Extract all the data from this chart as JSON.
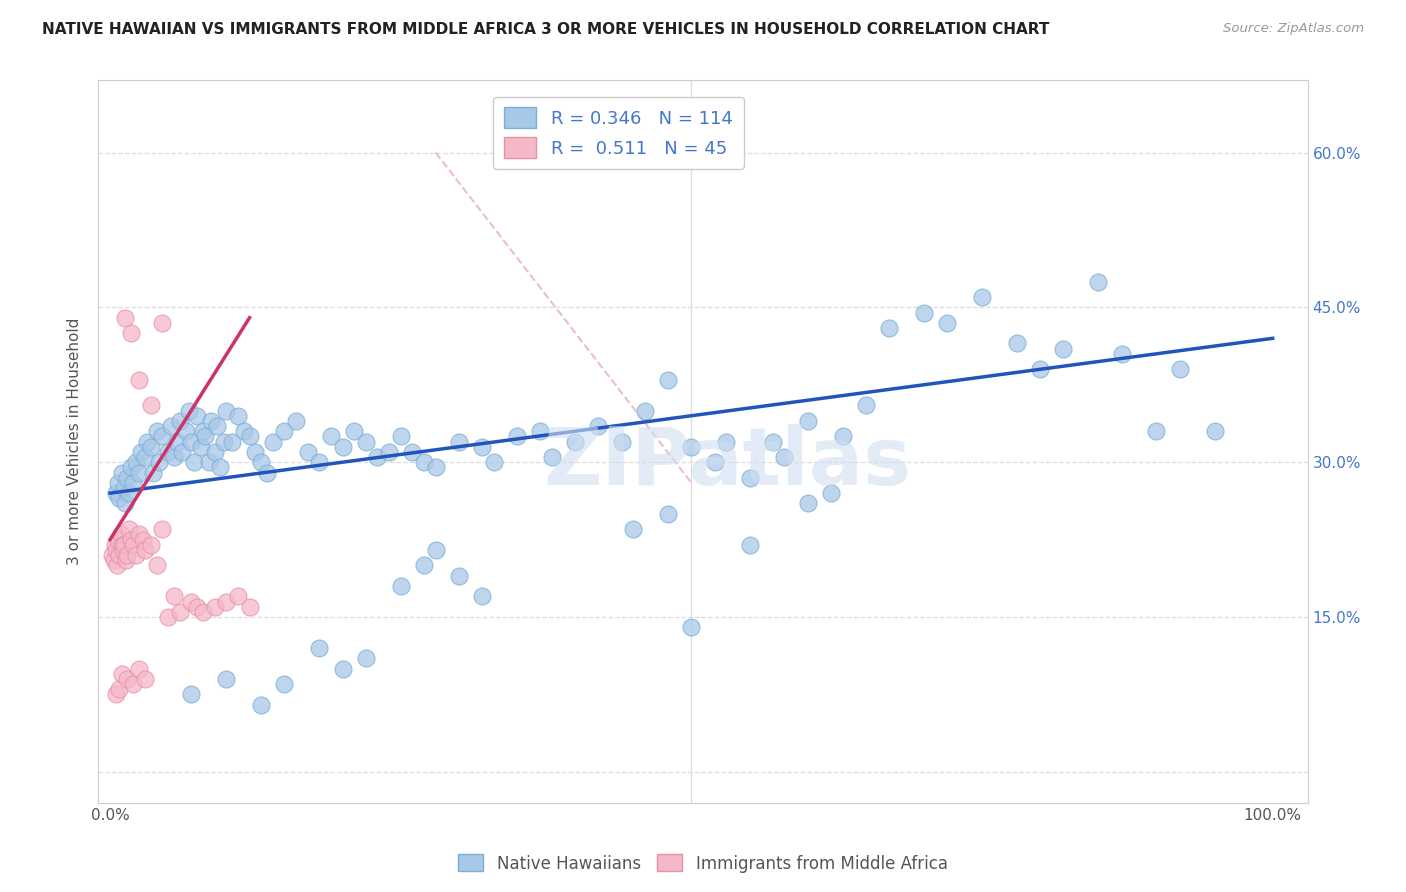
{
  "title": "NATIVE HAWAIIAN VS IMMIGRANTS FROM MIDDLE AFRICA 3 OR MORE VEHICLES IN HOUSEHOLD CORRELATION CHART",
  "source": "Source: ZipAtlas.com",
  "ylabel": "3 or more Vehicles in Household",
  "r_blue": 0.346,
  "n_blue": 114,
  "r_pink": 0.511,
  "n_pink": 45,
  "xlim": [
    -1.0,
    103.0
  ],
  "ylim": [
    -3.0,
    67.0
  ],
  "blue_color": "#a8c8e8",
  "blue_edge": "#7aaed4",
  "pink_color": "#f5b8c8",
  "pink_edge": "#e890a8",
  "blue_line_color": "#2255bb",
  "pink_line_color": "#cc3366",
  "diag_line_color": "#e8b8c8",
  "grid_color": "#dddddd",
  "border_color": "#cccccc",
  "title_color": "#222222",
  "source_color": "#999999",
  "watermark": "ZIPatlas",
  "watermark_color": "#d0dff0",
  "right_tick_color": "#4477cc",
  "legend_box_color": "#cccccc",
  "blue_scatter_x": [
    0.5,
    0.7,
    0.8,
    1.0,
    1.2,
    1.3,
    1.5,
    1.6,
    1.8,
    2.0,
    2.2,
    2.5,
    2.7,
    3.0,
    3.2,
    3.5,
    3.7,
    4.0,
    4.2,
    4.5,
    5.0,
    5.2,
    5.5,
    5.8,
    6.0,
    6.2,
    6.5,
    6.8,
    7.0,
    7.2,
    7.5,
    7.8,
    8.0,
    8.2,
    8.5,
    8.7,
    9.0,
    9.2,
    9.5,
    9.8,
    10.0,
    10.5,
    11.0,
    11.5,
    12.0,
    12.5,
    13.0,
    13.5,
    14.0,
    15.0,
    16.0,
    17.0,
    18.0,
    19.0,
    20.0,
    21.0,
    22.0,
    23.0,
    24.0,
    25.0,
    26.0,
    27.0,
    28.0,
    30.0,
    32.0,
    33.0,
    35.0,
    37.0,
    38.0,
    40.0,
    42.0,
    44.0,
    46.0,
    48.0,
    50.0,
    52.0,
    53.0,
    55.0,
    57.0,
    58.0,
    60.0,
    62.0,
    63.0,
    65.0,
    67.0,
    70.0,
    72.0,
    75.0,
    78.0,
    80.0,
    82.0,
    85.0,
    87.0,
    90.0,
    92.0,
    95.0,
    25.0,
    27.0,
    28.0,
    30.0,
    32.0,
    15.0,
    18.0,
    20.0,
    22.0,
    7.0,
    10.0,
    13.0,
    45.0,
    48.0,
    50.0,
    55.0,
    60.0
  ],
  "blue_scatter_y": [
    27.0,
    28.0,
    26.5,
    29.0,
    27.5,
    26.0,
    28.5,
    27.0,
    29.5,
    28.0,
    30.0,
    29.0,
    31.0,
    30.5,
    32.0,
    31.5,
    29.0,
    33.0,
    30.0,
    32.5,
    31.0,
    33.5,
    30.5,
    32.0,
    34.0,
    31.0,
    33.0,
    35.0,
    32.0,
    30.0,
    34.5,
    31.5,
    33.0,
    32.5,
    30.0,
    34.0,
    31.0,
    33.5,
    29.5,
    32.0,
    35.0,
    32.0,
    34.5,
    33.0,
    32.5,
    31.0,
    30.0,
    29.0,
    32.0,
    33.0,
    34.0,
    31.0,
    30.0,
    32.5,
    31.5,
    33.0,
    32.0,
    30.5,
    31.0,
    32.5,
    31.0,
    30.0,
    29.5,
    32.0,
    31.5,
    30.0,
    32.5,
    33.0,
    30.5,
    32.0,
    33.5,
    32.0,
    35.0,
    38.0,
    31.5,
    30.0,
    32.0,
    28.5,
    32.0,
    30.5,
    34.0,
    27.0,
    32.5,
    35.5,
    43.0,
    44.5,
    43.5,
    46.0,
    41.5,
    39.0,
    41.0,
    47.5,
    40.5,
    33.0,
    39.0,
    33.0,
    18.0,
    20.0,
    21.5,
    19.0,
    17.0,
    8.5,
    12.0,
    10.0,
    11.0,
    7.5,
    9.0,
    6.5,
    23.5,
    25.0,
    14.0,
    22.0,
    26.0
  ],
  "pink_scatter_x": [
    0.2,
    0.3,
    0.4,
    0.5,
    0.6,
    0.7,
    0.8,
    0.9,
    1.0,
    1.1,
    1.2,
    1.4,
    1.5,
    1.6,
    1.8,
    2.0,
    2.2,
    2.5,
    2.8,
    3.0,
    3.5,
    4.0,
    4.5,
    5.0,
    5.5,
    6.0,
    7.0,
    7.5,
    8.0,
    9.0,
    10.0,
    11.0,
    12.0,
    1.3,
    1.8,
    2.5,
    3.5,
    4.5,
    0.5,
    0.8,
    1.0,
    1.5,
    2.0,
    2.5,
    3.0
  ],
  "pink_scatter_y": [
    21.0,
    20.5,
    22.0,
    21.5,
    20.0,
    22.5,
    21.0,
    23.0,
    22.0,
    21.5,
    22.0,
    20.5,
    21.0,
    23.5,
    22.5,
    22.0,
    21.0,
    23.0,
    22.5,
    21.5,
    22.0,
    20.0,
    23.5,
    15.0,
    17.0,
    15.5,
    16.5,
    16.0,
    15.5,
    16.0,
    16.5,
    17.0,
    16.0,
    44.0,
    42.5,
    38.0,
    35.5,
    43.5,
    7.5,
    8.0,
    9.5,
    9.0,
    8.5,
    10.0,
    9.0
  ]
}
